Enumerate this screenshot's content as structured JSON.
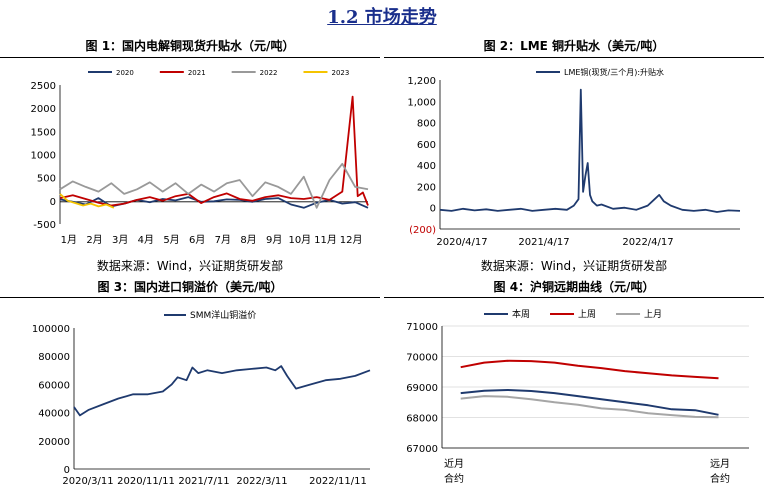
{
  "section_title": "1.2 市场走势",
  "sources": {
    "left": "数据来源：Wind，兴证期货研发部",
    "right": "数据来源：Wind，兴证期货研发部"
  },
  "chart_data": [
    {
      "type": "line",
      "title": "图 1：国内电解铜现货升贴水（元/吨）",
      "xlabel": "",
      "ylabel": "",
      "categories": [
        "1月",
        "2月",
        "3月",
        "4月",
        "5月",
        "6月",
        "7月",
        "8月",
        "9月",
        "10月",
        "11月",
        "12月"
      ],
      "yticks": [
        "2500",
        "2000",
        "1500",
        "1000",
        "500",
        "0",
        "-500"
      ],
      "ylim": [
        -500,
        2500
      ],
      "legend_position": "top",
      "colors": {
        "2020": "#1f3a6e",
        "2021": "#c00000",
        "2022": "#999999",
        "2023": "#f5c400"
      },
      "series": [
        {
          "name": "2020",
          "x": [
            0,
            0.5,
            1,
            1.5,
            2,
            2.5,
            3,
            3.5,
            4,
            4.5,
            5,
            5.5,
            6,
            6.5,
            7,
            7.5,
            8,
            8.5,
            9,
            9.5,
            10,
            10.5,
            11,
            11.5,
            12
          ],
          "values": [
            30,
            -20,
            -80,
            60,
            -120,
            -60,
            20,
            -30,
            40,
            10,
            80,
            -20,
            -10,
            30,
            20,
            -20,
            40,
            60,
            -80,
            -150,
            -40,
            20,
            -60,
            -30,
            -150
          ]
        },
        {
          "name": "2021",
          "x": [
            0,
            0.5,
            1,
            1.5,
            2,
            2.5,
            3,
            3.5,
            4,
            4.5,
            5,
            5.5,
            6,
            6.5,
            7,
            7.5,
            8,
            8.5,
            9,
            9.5,
            10,
            10.5,
            11,
            11.4,
            11.6,
            11.8,
            12
          ],
          "values": [
            60,
            120,
            40,
            -40,
            -100,
            -60,
            20,
            80,
            0,
            100,
            150,
            -50,
            80,
            160,
            40,
            0,
            80,
            120,
            60,
            40,
            80,
            20,
            200,
            2250,
            100,
            180,
            -100
          ]
        },
        {
          "name": "2022",
          "x": [
            0,
            0.5,
            1,
            1.5,
            2,
            2.5,
            3,
            3.5,
            4,
            4.5,
            5,
            5.5,
            6,
            6.5,
            7,
            7.5,
            8,
            8.5,
            9,
            9.5,
            10,
            10.5,
            11,
            11.5,
            12
          ],
          "values": [
            250,
            420,
            300,
            200,
            380,
            150,
            250,
            400,
            200,
            380,
            150,
            350,
            200,
            380,
            450,
            100,
            400,
            300,
            150,
            520,
            -150,
            450,
            800,
            300,
            250
          ]
        },
        {
          "name": "2023",
          "x": [
            0,
            0.3,
            0.6,
            0.9,
            1.2,
            1.5,
            1.8,
            2.1
          ],
          "values": [
            150,
            0,
            -50,
            -100,
            -60,
            -120,
            -80,
            -150
          ]
        }
      ]
    },
    {
      "type": "line",
      "title": "图 2：LME 铜升贴水（美元/吨）",
      "xlabel": "",
      "ylabel": "",
      "yticks": [
        "1,200",
        "1,000",
        "800",
        "600",
        "400",
        "200",
        "0",
        "(200)"
      ],
      "ylim": [
        -200,
        1200
      ],
      "xticks": [
        "2020/4/17",
        "2021/4/17",
        "2022/4/17"
      ],
      "legend_position": "top",
      "colors": {
        "line": "#1f3a6e",
        "negative_tick": "#c00000"
      },
      "series": [
        {
          "name": "LME铜(现货/三个月):升贴水",
          "x": [
            0,
            0.05,
            0.1,
            0.15,
            0.2,
            0.25,
            0.3,
            0.35,
            0.4,
            0.45,
            0.5,
            0.55,
            0.58,
            0.6,
            0.61,
            0.62,
            0.63,
            0.64,
            0.65,
            0.66,
            0.68,
            0.7,
            0.75,
            0.8,
            0.85,
            0.9,
            0.93,
            0.95,
            0.97,
            1.0,
            1.05,
            1.1,
            1.15,
            1.2,
            1.25,
            1.3
          ],
          "values": [
            -20,
            -30,
            -10,
            -25,
            -15,
            -30,
            -20,
            -10,
            -30,
            -20,
            -10,
            -20,
            20,
            80,
            1110,
            150,
            300,
            420,
            120,
            60,
            20,
            30,
            -10,
            0,
            -20,
            20,
            80,
            120,
            60,
            20,
            -20,
            -30,
            -20,
            -40,
            -25,
            -30
          ]
        }
      ]
    },
    {
      "type": "line",
      "title": "图 3：国内进口铜溢价（美元/吨）",
      "xlabel": "",
      "ylabel": "",
      "yticks": [
        "100000",
        "80000",
        "60000",
        "40000",
        "20000",
        "0"
      ],
      "ylim": [
        0,
        100000
      ],
      "xticks": [
        "2020/3/11",
        "2020/11/11",
        "2021/7/11",
        "2022/3/11",
        "2022/11/11"
      ],
      "legend_position": "top",
      "colors": {
        "line": "#1f3a6e"
      },
      "series": [
        {
          "name": "SMM洋山铜溢价",
          "x": [
            0,
            0.02,
            0.05,
            0.1,
            0.15,
            0.2,
            0.25,
            0.3,
            0.33,
            0.35,
            0.38,
            0.4,
            0.42,
            0.45,
            0.5,
            0.55,
            0.6,
            0.65,
            0.68,
            0.7,
            0.72,
            0.75,
            0.8,
            0.85,
            0.9,
            0.95,
            1.0
          ],
          "values": [
            44000,
            38000,
            42000,
            46000,
            50000,
            53000,
            53000,
            55000,
            60000,
            65000,
            63000,
            72000,
            68000,
            70000,
            68000,
            70000,
            71000,
            72000,
            70000,
            73000,
            66000,
            57000,
            60000,
            63000,
            64000,
            66000,
            70000
          ]
        }
      ]
    },
    {
      "type": "line",
      "title": "图 4：沪铜远期曲线（元/吨）",
      "xlabel": "",
      "ylabel": "",
      "yticks": [
        "71000",
        "70000",
        "69000",
        "68000",
        "67000"
      ],
      "ylim": [
        67000,
        71000
      ],
      "xticks": [
        "近月合约",
        "远月合约"
      ],
      "legend_position": "top",
      "colors": {
        "本周": "#1f3a6e",
        "上周": "#c00000",
        "上月": "#a6a6a6"
      },
      "series": [
        {
          "name": "本周",
          "x": [
            0,
            1,
            2,
            3,
            4,
            5,
            6,
            7,
            8,
            9,
            10,
            11
          ],
          "values": [
            68800,
            68880,
            68900,
            68870,
            68800,
            68700,
            68600,
            68500,
            68400,
            68270,
            68240,
            68090
          ]
        },
        {
          "name": "上周",
          "x": [
            0,
            1,
            2,
            3,
            4,
            5,
            6,
            7,
            8,
            9,
            10,
            11
          ],
          "values": [
            69650,
            69800,
            69860,
            69850,
            69800,
            69700,
            69620,
            69520,
            69450,
            69380,
            69330,
            69290
          ]
        },
        {
          "name": "上月",
          "x": [
            0,
            1,
            2,
            3,
            4,
            5,
            6,
            7,
            8,
            9,
            10,
            11
          ],
          "values": [
            68620,
            68700,
            68680,
            68600,
            68500,
            68420,
            68300,
            68250,
            68140,
            68080,
            68020,
            68010
          ]
        }
      ]
    }
  ]
}
